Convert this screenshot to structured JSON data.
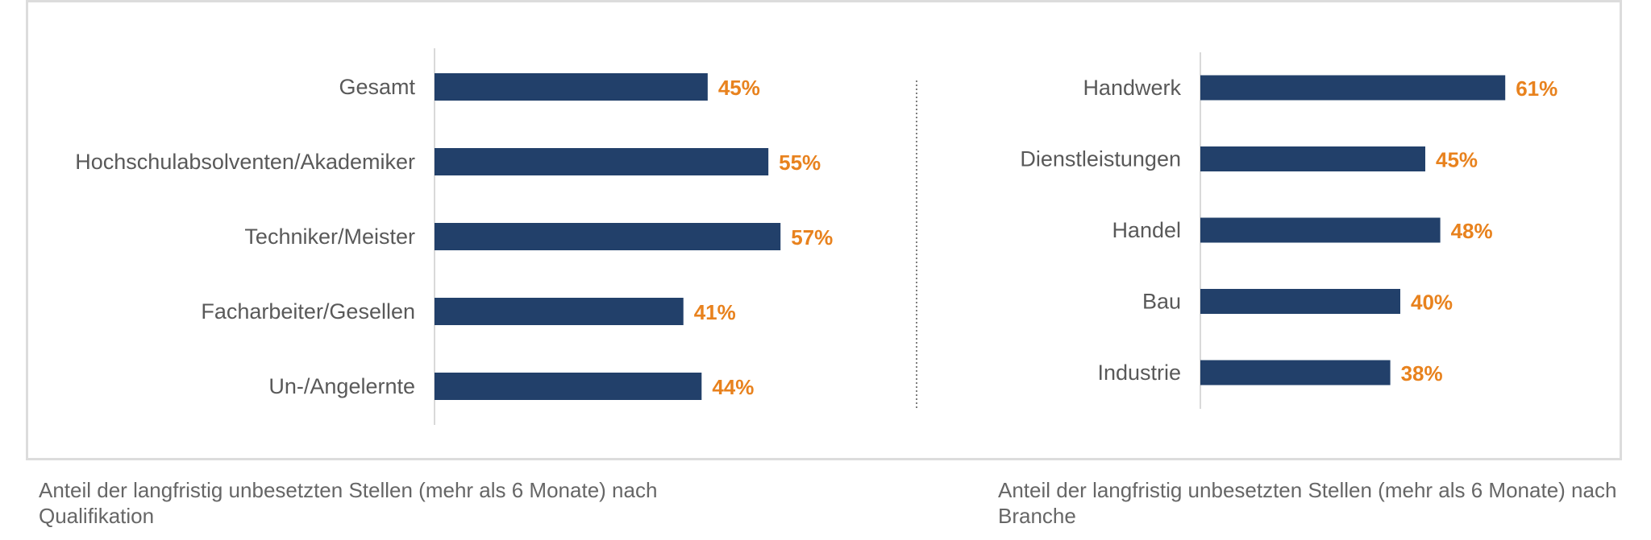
{
  "colors": {
    "bar": "#22406a",
    "value_label": "#e8821e",
    "category_label": "#595959",
    "axis": "#d9d9d9",
    "divider": "#7f7f7f",
    "frame": "#dcdcdc",
    "caption": "#666666"
  },
  "chart_data": [
    {
      "type": "bar",
      "orientation": "horizontal",
      "categories": [
        "Gesamt",
        "Hochschulabsolventen/Akademiker",
        "Techniker/Meister",
        "Facharbeiter/Gesellen",
        "Un-/Angelernte"
      ],
      "values": [
        45,
        55,
        57,
        41,
        44
      ],
      "value_labels": [
        "45%",
        "55%",
        "57%",
        "41%",
        "44%"
      ],
      "unit": "%",
      "caption": "Anteil der langfristig unbesetzten Stellen (mehr als 6 Monate) nach Qualifikation",
      "grid": false,
      "legend": "none"
    },
    {
      "type": "bar",
      "orientation": "horizontal",
      "categories": [
        "Handwerk",
        "Dienstleistungen",
        "Handel",
        "Bau",
        "Industrie"
      ],
      "values": [
        61,
        45,
        48,
        40,
        38
      ],
      "value_labels": [
        "61%",
        "45%",
        "48%",
        "40%",
        "38%"
      ],
      "unit": "%",
      "caption": "Anteil der langfristig unbesetzten Stellen (mehr als 6 Monate) nach Branche",
      "grid": false,
      "legend": "none"
    }
  ]
}
